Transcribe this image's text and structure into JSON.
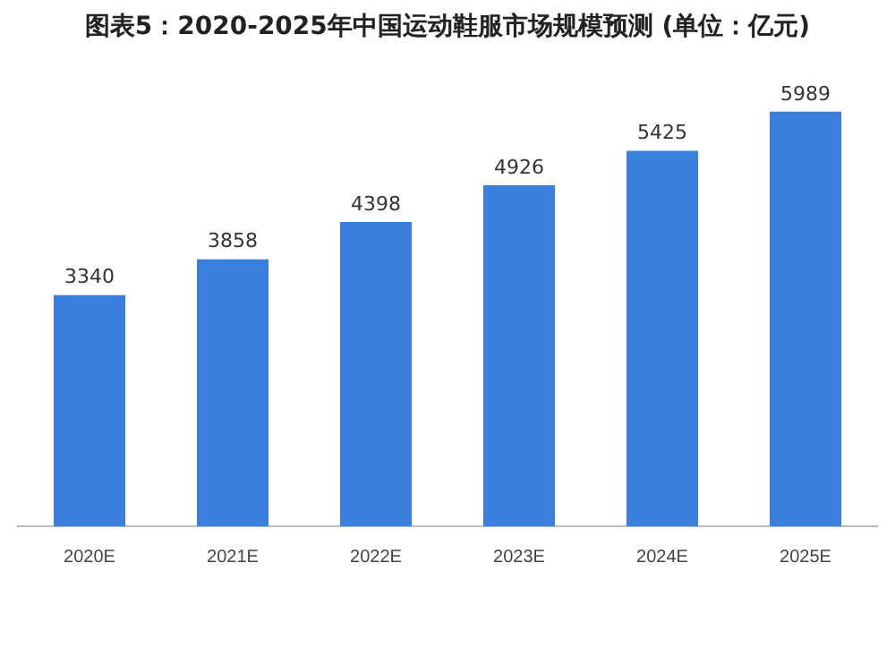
{
  "chart_data": {
    "type": "bar",
    "title": "图表5：2020-2025年中国运动鞋服市场规模预测 (单位：亿元)",
    "categories": [
      "2020E",
      "2021E",
      "2022E",
      "2023E",
      "2024E",
      "2025E"
    ],
    "values": [
      3340,
      3858,
      4398,
      4926,
      5425,
      5989
    ],
    "color": "#3a7fdb",
    "data_labels": true
  }
}
